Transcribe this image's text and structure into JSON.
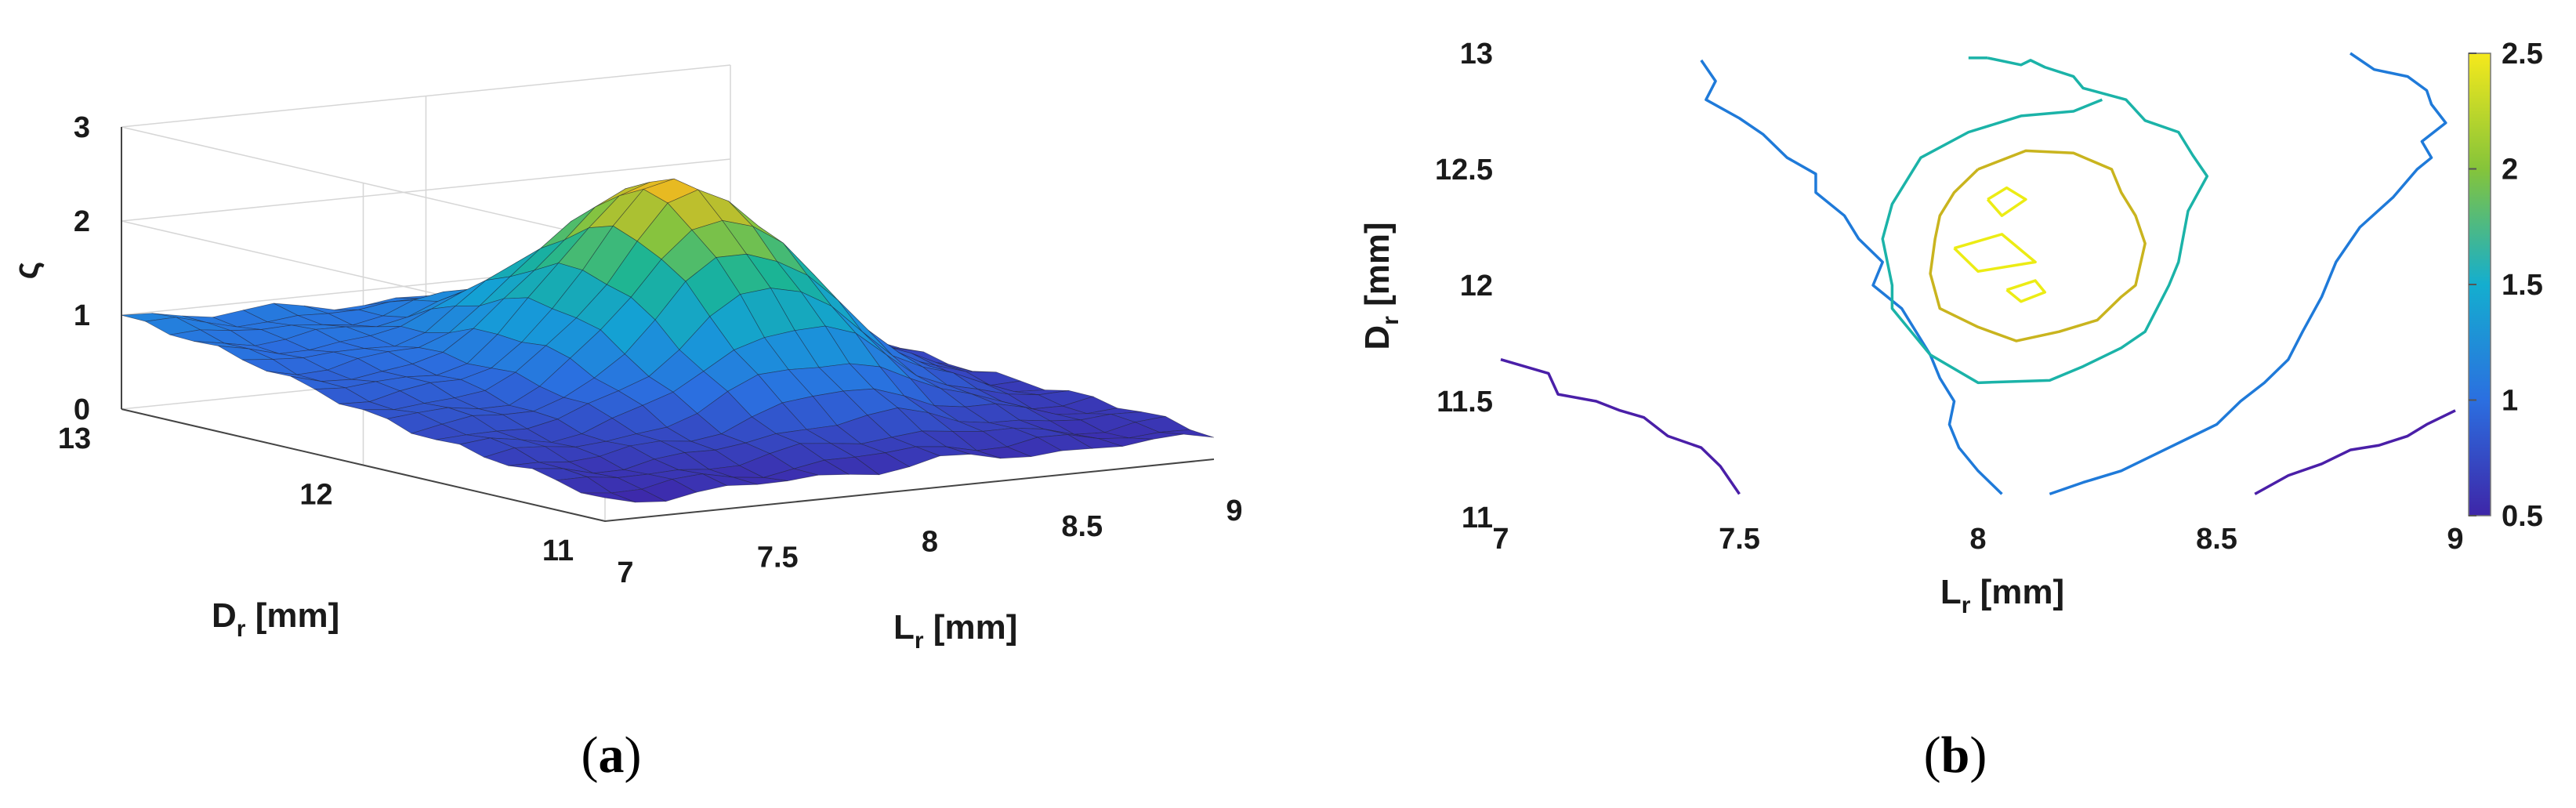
{
  "chart_data": [
    {
      "type": "surface",
      "zlabel": "ς",
      "xlabel": "D",
      "xlabel_sub": "r",
      "xlabel_unit": " [mm]",
      "ylabel": "L",
      "ylabel_sub": "r",
      "ylabel_unit": " [mm]",
      "d_range": [
        11,
        13
      ],
      "l_range": [
        7,
        9
      ],
      "zlim": [
        0,
        3
      ],
      "d_ticks": [
        "13",
        "12",
        "11"
      ],
      "l_ticks": [
        "7",
        "7.5",
        "8",
        "8.5",
        "9"
      ],
      "z_ticks": [
        "0",
        "1",
        "2",
        "3"
      ],
      "peak": {
        "L": 8.1,
        "D": 12.1,
        "value": 2.6
      },
      "corner_values": {
        "L7_D13": 1.0,
        "L9_D13": 0.5,
        "L7_D11": 0.2,
        "L9_D11": 0.25
      },
      "panel_label": "a"
    },
    {
      "type": "contour",
      "xlabel": "L",
      "xlabel_sub": "r",
      "xlabel_unit": " [mm]",
      "ylabel": "D",
      "ylabel_sub": "r",
      "ylabel_unit": " [mm]",
      "xlim": [
        7,
        9
      ],
      "ylim": [
        11,
        13
      ],
      "x_ticks": [
        "7",
        "7.5",
        "8",
        "8.5",
        "9"
      ],
      "y_ticks": [
        "11",
        "11.5",
        "12",
        "12.5",
        "13"
      ],
      "colorbar_ticks": [
        "0.5",
        "1",
        "1.5",
        "2",
        "2.5"
      ],
      "colorbar_range": [
        0.5,
        2.5
      ],
      "levels": [
        {
          "level": 0.5,
          "color": "#4a1fa8",
          "paths": [
            [
              [
                7.0,
                11.68
              ],
              [
                7.1,
                11.62
              ],
              [
                7.12,
                11.53
              ],
              [
                7.2,
                11.5
              ],
              [
                7.25,
                11.46
              ],
              [
                7.3,
                11.43
              ],
              [
                7.35,
                11.35
              ],
              [
                7.42,
                11.3
              ],
              [
                7.46,
                11.22
              ],
              [
                7.5,
                11.1
              ]
            ],
            [
              [
                8.58,
                11.1
              ],
              [
                8.65,
                11.18
              ],
              [
                8.72,
                11.23
              ],
              [
                8.78,
                11.29
              ],
              [
                8.84,
                11.31
              ],
              [
                8.9,
                11.35
              ],
              [
                8.94,
                11.4
              ],
              [
                9.0,
                11.46
              ]
            ]
          ]
        },
        {
          "level": 1.0,
          "color": "#1f7ad9",
          "paths": [
            [
              [
                7.42,
                12.97
              ],
              [
                7.45,
                12.88
              ],
              [
                7.43,
                12.8
              ],
              [
                7.5,
                12.72
              ],
              [
                7.55,
                12.65
              ],
              [
                7.6,
                12.55
              ],
              [
                7.66,
                12.48
              ],
              [
                7.66,
                12.4
              ],
              [
                7.72,
                12.3
              ],
              [
                7.75,
                12.2
              ],
              [
                7.8,
                12.1
              ],
              [
                7.78,
                12.0
              ],
              [
                7.84,
                11.9
              ],
              [
                7.87,
                11.8
              ],
              [
                7.9,
                11.7
              ],
              [
                7.92,
                11.6
              ],
              [
                7.95,
                11.5
              ],
              [
                7.94,
                11.4
              ],
              [
                7.96,
                11.3
              ],
              [
                8.0,
                11.2
              ],
              [
                8.05,
                11.1
              ]
            ],
            [
              [
                8.15,
                11.1
              ],
              [
                8.22,
                11.15
              ],
              [
                8.3,
                11.2
              ],
              [
                8.4,
                11.3
              ],
              [
                8.5,
                11.4
              ],
              [
                8.55,
                11.5
              ],
              [
                8.6,
                11.58
              ],
              [
                8.65,
                11.68
              ],
              [
                8.68,
                11.8
              ],
              [
                8.72,
                11.95
              ],
              [
                8.75,
                12.1
              ],
              [
                8.8,
                12.25
              ],
              [
                8.87,
                12.38
              ],
              [
                8.92,
                12.5
              ],
              [
                8.95,
                12.55
              ],
              [
                8.93,
                12.62
              ],
              [
                8.98,
                12.7
              ],
              [
                8.95,
                12.78
              ],
              [
                8.94,
                12.84
              ],
              [
                8.9,
                12.9
              ],
              [
                8.83,
                12.93
              ],
              [
                8.78,
                13.0
              ]
            ]
          ]
        },
        {
          "level": 1.5,
          "color": "#1bb3a8",
          "paths": [
            [
              [
                8.02,
                12.98
              ],
              [
                8.09,
                12.95
              ],
              [
                8.11,
                12.97
              ],
              [
                8.14,
                12.94
              ],
              [
                8.2,
                12.9
              ],
              [
                8.22,
                12.85
              ],
              [
                8.31,
                12.8
              ],
              [
                8.35,
                12.71
              ],
              [
                8.42,
                12.66
              ],
              [
                8.45,
                12.56
              ],
              [
                8.48,
                12.47
              ],
              [
                8.44,
                12.32
              ],
              [
                8.42,
                12.1
              ],
              [
                8.4,
                12.0
              ],
              [
                8.35,
                11.8
              ],
              [
                8.3,
                11.73
              ],
              [
                8.22,
                11.65
              ],
              [
                8.15,
                11.59
              ],
              [
                8.0,
                11.58
              ],
              [
                7.9,
                11.7
              ],
              [
                7.82,
                11.9
              ],
              [
                7.82,
                12.0
              ],
              [
                7.8,
                12.2
              ],
              [
                7.82,
                12.35
              ],
              [
                7.88,
                12.55
              ],
              [
                7.98,
                12.66
              ],
              [
                8.09,
                12.73
              ],
              [
                8.2,
                12.75
              ],
              [
                8.26,
                12.8
              ]
            ],
            [
              [
                7.98,
                12.98
              ],
              [
                8.02,
                12.98
              ]
            ]
          ]
        },
        {
          "level": 2.0,
          "color": "#c9b41e",
          "paths": [
            [
              [
                8.0,
                12.5
              ],
              [
                8.1,
                12.58
              ],
              [
                8.2,
                12.57
              ],
              [
                8.28,
                12.5
              ],
              [
                8.3,
                12.4
              ],
              [
                8.33,
                12.3
              ],
              [
                8.35,
                12.18
              ],
              [
                8.33,
                12.0
              ],
              [
                8.3,
                11.95
              ],
              [
                8.25,
                11.85
              ],
              [
                8.17,
                11.8
              ],
              [
                8.08,
                11.76
              ],
              [
                8.0,
                11.82
              ],
              [
                7.92,
                11.9
              ],
              [
                7.9,
                12.05
              ],
              [
                7.91,
                12.2
              ],
              [
                7.92,
                12.3
              ],
              [
                7.95,
                12.4
              ],
              [
                8.0,
                12.5
              ]
            ]
          ]
        },
        {
          "level": 2.5,
          "color": "#ecec14",
          "paths": [
            [
              [
                8.02,
                12.37
              ],
              [
                8.06,
                12.42
              ],
              [
                8.1,
                12.37
              ],
              [
                8.05,
                12.3
              ],
              [
                8.02,
                12.37
              ]
            ],
            [
              [
                7.95,
                12.16
              ],
              [
                8.05,
                12.22
              ],
              [
                8.12,
                12.1
              ],
              [
                8.0,
                12.06
              ],
              [
                7.95,
                12.16
              ]
            ],
            [
              [
                8.06,
                11.98
              ],
              [
                8.12,
                12.02
              ],
              [
                8.14,
                11.97
              ],
              [
                8.09,
                11.93
              ],
              [
                8.06,
                11.98
              ]
            ]
          ]
        }
      ],
      "panel_label": "b"
    }
  ],
  "labels": {
    "panel_a": "a",
    "panel_b": "b"
  }
}
